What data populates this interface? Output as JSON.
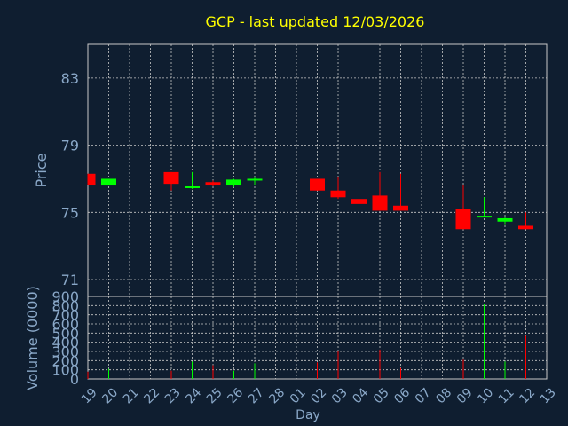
{
  "colors": {
    "background": "#0f1e30",
    "text": "#8aa8c8",
    "title": "#ffff00",
    "grid": "#c8c8c8",
    "up": "#00ff00",
    "down": "#ff0000"
  },
  "chart_data": [
    {
      "type": "candlestick",
      "title": "GCP - last updated 12/03/2026",
      "ylabel": "Price",
      "ylim": [
        70,
        85
      ],
      "yticks": [
        71,
        75,
        79,
        83
      ],
      "grid": true,
      "x_ticks": [
        "19",
        "20",
        "21",
        "22",
        "23",
        "24",
        "25",
        "26",
        "27",
        "28",
        "01",
        "02",
        "03",
        "04",
        "05",
        "06",
        "07",
        "08",
        "09",
        "10",
        "11",
        "12",
        "13"
      ],
      "candles": [
        {
          "day": "19",
          "open": 77.3,
          "high": 77.3,
          "low": 76.6,
          "close": 76.6
        },
        {
          "day": "20",
          "open": 76.6,
          "high": 77.0,
          "low": 76.6,
          "close": 77.0
        },
        {
          "day": "23",
          "open": 77.4,
          "high": 77.4,
          "low": 76.3,
          "close": 76.7
        },
        {
          "day": "24",
          "open": 76.45,
          "high": 77.4,
          "low": 76.4,
          "close": 76.55
        },
        {
          "day": "25",
          "open": 76.8,
          "high": 76.9,
          "low": 76.55,
          "close": 76.6
        },
        {
          "day": "26",
          "open": 76.6,
          "high": 77.0,
          "low": 76.5,
          "close": 76.95
        },
        {
          "day": "27",
          "open": 76.95,
          "high": 77.1,
          "low": 76.6,
          "close": 77.0
        },
        {
          "day": "02",
          "open": 77.0,
          "high": 77.0,
          "low": 76.3,
          "close": 76.3
        },
        {
          "day": "03",
          "open": 76.3,
          "high": 77.1,
          "low": 75.8,
          "close": 75.9
        },
        {
          "day": "04",
          "open": 75.8,
          "high": 75.9,
          "low": 75.5,
          "close": 75.5
        },
        {
          "day": "05",
          "open": 76.0,
          "high": 77.4,
          "low": 75.1,
          "close": 75.1
        },
        {
          "day": "06",
          "open": 75.4,
          "high": 77.3,
          "low": 75.1,
          "close": 75.1
        },
        {
          "day": "09",
          "open": 75.2,
          "high": 76.6,
          "low": 74.0,
          "close": 74.0
        },
        {
          "day": "10",
          "open": 74.7,
          "high": 75.9,
          "low": 74.7,
          "close": 74.8
        },
        {
          "day": "11",
          "open": 74.45,
          "high": 74.7,
          "low": 74.3,
          "close": 74.65
        },
        {
          "day": "12",
          "open": 74.2,
          "high": 75.0,
          "low": 74.0,
          "close": 74.0
        }
      ]
    },
    {
      "type": "bar",
      "ylabel": "Volume (0000)",
      "xlabel": "Day",
      "ylim": [
        0,
        900
      ],
      "yticks": [
        0,
        100,
        200,
        300,
        400,
        500,
        600,
        700,
        800,
        900
      ],
      "x_ticks": [
        "19",
        "20",
        "21",
        "22",
        "23",
        "24",
        "25",
        "26",
        "27",
        "28",
        "01",
        "02",
        "03",
        "04",
        "05",
        "06",
        "07",
        "08",
        "09",
        "10",
        "11",
        "12",
        "13"
      ],
      "bars": [
        {
          "day": "19",
          "value": 80,
          "dir": "down"
        },
        {
          "day": "20",
          "value": 110,
          "dir": "up"
        },
        {
          "day": "23",
          "value": 90,
          "dir": "down"
        },
        {
          "day": "24",
          "value": 190,
          "dir": "up"
        },
        {
          "day": "25",
          "value": 150,
          "dir": "down"
        },
        {
          "day": "26",
          "value": 90,
          "dir": "up"
        },
        {
          "day": "27",
          "value": 170,
          "dir": "up"
        },
        {
          "day": "02",
          "value": 180,
          "dir": "down"
        },
        {
          "day": "03",
          "value": 300,
          "dir": "down"
        },
        {
          "day": "04",
          "value": 330,
          "dir": "down"
        },
        {
          "day": "05",
          "value": 320,
          "dir": "down"
        },
        {
          "day": "06",
          "value": 120,
          "dir": "down"
        },
        {
          "day": "09",
          "value": 210,
          "dir": "down"
        },
        {
          "day": "10",
          "value": 820,
          "dir": "up"
        },
        {
          "day": "11",
          "value": 190,
          "dir": "up"
        },
        {
          "day": "12",
          "value": 470,
          "dir": "down"
        }
      ]
    }
  ]
}
